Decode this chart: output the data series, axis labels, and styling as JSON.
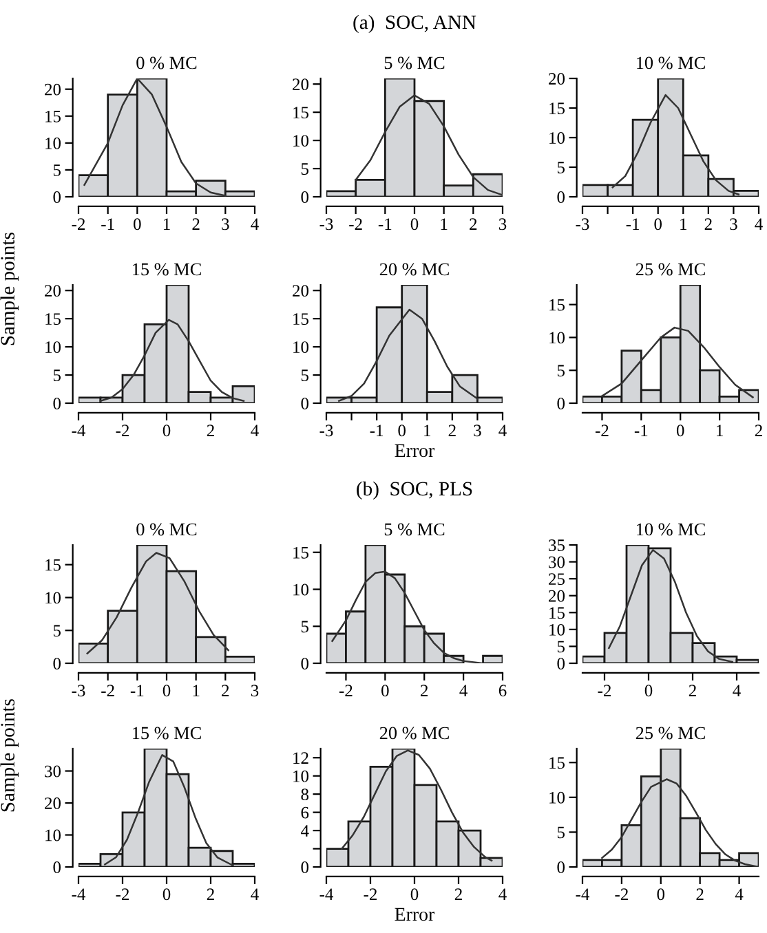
{
  "chart_data": [
    {
      "type": "histogram",
      "title": "0 % MC",
      "ylabel": "Sample points",
      "bins": [
        -2,
        -1,
        0,
        1,
        2,
        3,
        4
      ],
      "xlim": [
        -2,
        4
      ],
      "xticks": [
        -2,
        -1,
        0,
        1,
        2,
        3,
        4
      ],
      "ylim": [
        0,
        22
      ],
      "yticks": [
        0,
        5,
        10,
        15,
        20
      ],
      "series": [
        {
          "type": "histogram",
          "color": "#d4d6d9",
          "values": [
            4,
            19,
            22,
            1,
            3,
            1
          ]
        },
        {
          "type": "line",
          "color": "#333333",
          "x": [
            -1.8,
            -1,
            -0.5,
            0,
            0.5,
            1,
            1.5,
            2,
            2.5,
            3
          ],
          "values": [
            2.2,
            10,
            17,
            22,
            19,
            13,
            6.5,
            2.5,
            0.8,
            0.2
          ]
        }
      ]
    },
    {
      "type": "histogram",
      "title": "5 % MC",
      "annotations": [
        "(a)  SOC, ANN"
      ],
      "bins": [
        -3,
        -2,
        -1,
        0,
        1,
        2,
        3
      ],
      "xlim": [
        -3,
        3
      ],
      "xticks": [
        -3,
        -2,
        -1,
        0,
        1,
        2,
        3
      ],
      "ylim": [
        0,
        21
      ],
      "yticks": [
        0,
        5,
        10,
        15,
        20
      ],
      "series": [
        {
          "type": "histogram",
          "color": "#d4d6d9",
          "values": [
            1,
            3,
            21,
            17,
            2,
            4
          ]
        },
        {
          "type": "line",
          "color": "#333333",
          "x": [
            -2,
            -1.5,
            -1,
            -0.5,
            0,
            0.5,
            1,
            1.5,
            2,
            2.5,
            3
          ],
          "values": [
            3,
            6.5,
            11.5,
            16,
            18,
            16.5,
            12.5,
            7.5,
            3.5,
            1.2,
            0.3
          ]
        }
      ]
    },
    {
      "type": "histogram",
      "title": "10 % MC",
      "bins": [
        -3,
        -2,
        -1,
        0,
        1,
        2,
        3,
        4
      ],
      "xlim": [
        -3,
        4
      ],
      "xticks": [
        -3,
        {
          "value": -2,
          "label": null
        },
        -1,
        0,
        1,
        2,
        3,
        4
      ],
      "ylim": [
        0,
        20
      ],
      "yticks": [
        0,
        5,
        10,
        15,
        20
      ],
      "series": [
        {
          "type": "histogram",
          "color": "#d4d6d9",
          "values": [
            2,
            2,
            13,
            20,
            7,
            3,
            1
          ]
        },
        {
          "type": "line",
          "color": "#333333",
          "x": [
            -1.8,
            -1.3,
            -0.8,
            -0.3,
            0.3,
            0.8,
            1.3,
            1.8,
            2.3,
            2.8,
            3.2
          ],
          "values": [
            1.6,
            3.5,
            7.5,
            12.5,
            17.2,
            15,
            10.5,
            6,
            2.8,
            1,
            0.4
          ]
        }
      ]
    },
    {
      "type": "histogram",
      "title": "15 % MC",
      "bins": [
        -4,
        -3,
        -2,
        -1,
        0,
        1,
        2,
        3,
        4
      ],
      "xlim": [
        -4,
        4
      ],
      "xticks": [
        -4,
        -2,
        0,
        2,
        4
      ],
      "ylim": [
        0,
        21
      ],
      "yticks": [
        0,
        5,
        10,
        15,
        20
      ],
      "series": [
        {
          "type": "histogram",
          "color": "#d4d6d9",
          "values": [
            1,
            1,
            5,
            14,
            21,
            2,
            1,
            3
          ]
        },
        {
          "type": "line",
          "color": "#333333",
          "x": [
            -3,
            -2.5,
            -2,
            -1.5,
            -1,
            -0.5,
            0.1,
            0.5,
            1,
            1.5,
            2,
            2.5,
            3,
            3.5
          ],
          "values": [
            0.4,
            1,
            2.5,
            5,
            8.5,
            12.5,
            14.8,
            14,
            11,
            7.5,
            4,
            2,
            0.9,
            0.4
          ]
        }
      ]
    },
    {
      "type": "histogram",
      "title": "20 % MC",
      "xlabel": "Error",
      "bins": [
        -3,
        -2,
        -1,
        0,
        1,
        2,
        3,
        4
      ],
      "xlim": [
        -3,
        4
      ],
      "xticks": [
        -3,
        {
          "value": -2,
          "label": null
        },
        -1,
        0,
        1,
        2,
        3,
        4
      ],
      "ylim": [
        0,
        21
      ],
      "yticks": [
        0,
        5,
        10,
        15,
        20
      ],
      "series": [
        {
          "type": "histogram",
          "color": "#d4d6d9",
          "values": [
            1,
            1,
            17,
            21,
            2,
            5,
            1
          ]
        },
        {
          "type": "line",
          "color": "#333333",
          "x": [
            -2.5,
            -2,
            -1.5,
            -1,
            -0.5,
            0.3,
            0.8,
            1.3,
            1.8,
            2.3,
            3
          ],
          "values": [
            0.4,
            1.3,
            3.5,
            7.5,
            12,
            16.6,
            15,
            11,
            6.5,
            3,
            0.8
          ]
        }
      ]
    },
    {
      "type": "histogram",
      "title": "25 % MC",
      "bins": [
        -2.5,
        -2,
        -1.5,
        -1,
        -0.5,
        0,
        0.5,
        1,
        1.5,
        2
      ],
      "xlim": [
        -2.5,
        2
      ],
      "xticks": [
        -2,
        -1,
        0,
        1,
        2
      ],
      "ylim": [
        0,
        18
      ],
      "yticks": [
        0,
        5,
        10,
        15
      ],
      "series": [
        {
          "type": "histogram",
          "color": "#d4d6d9",
          "values": [
            1,
            1,
            8,
            2,
            10,
            18,
            5,
            1,
            2
          ]
        },
        {
          "type": "line",
          "color": "#333333",
          "x": [
            -2,
            -1.5,
            -1,
            -0.5,
            -0.15,
            0.2,
            0.6,
            1,
            1.4,
            1.85
          ],
          "values": [
            1.1,
            3,
            6.5,
            10,
            11.5,
            11,
            8.5,
            5.5,
            2.8,
            0.9
          ]
        }
      ]
    },
    {
      "type": "histogram",
      "title": "0 % MC",
      "ylabel": "Sample points",
      "bins": [
        -3,
        -2,
        -1,
        0,
        1,
        2,
        3
      ],
      "xlim": [
        -3,
        3
      ],
      "xticks": [
        -3,
        -2,
        -1,
        0,
        1,
        2,
        3
      ],
      "ylim": [
        0,
        18
      ],
      "yticks": [
        0,
        5,
        10,
        15
      ],
      "series": [
        {
          "type": "histogram",
          "color": "#d4d6d9",
          "values": [
            3,
            8,
            18,
            14,
            4,
            1
          ]
        },
        {
          "type": "line",
          "color": "#333333",
          "x": [
            -2.7,
            -2.2,
            -1.7,
            -1.2,
            -0.7,
            -0.35,
            0.1,
            0.6,
            1.1,
            1.6,
            2.1
          ],
          "values": [
            1.5,
            3.5,
            7,
            11.5,
            15.5,
            16.8,
            16,
            12.5,
            8,
            4.3,
            2
          ]
        }
      ]
    },
    {
      "type": "histogram",
      "title": "5 % MC",
      "annotations": [
        "(b)  SOC, PLS"
      ],
      "bins": [
        -3,
        -2,
        -1,
        0,
        1,
        2,
        3,
        4,
        5,
        6
      ],
      "xlim": [
        -3,
        6
      ],
      "xticks": [
        -2,
        0,
        2,
        4,
        6
      ],
      "ylim": [
        0,
        16
      ],
      "yticks": [
        0,
        5,
        10,
        15
      ],
      "series": [
        {
          "type": "histogram",
          "color": "#d4d6d9",
          "values": [
            4,
            7,
            16,
            12,
            5,
            4,
            1,
            0,
            1
          ]
        },
        {
          "type": "line",
          "color": "#333333",
          "x": [
            -2.7,
            -2,
            -1.5,
            -1,
            -0.5,
            0,
            0.5,
            1,
            1.5,
            2,
            2.5,
            3,
            3.5,
            4,
            5
          ],
          "values": [
            3,
            5.8,
            8.5,
            11,
            12.2,
            12.4,
            11.5,
            9.5,
            7,
            4.5,
            2.7,
            1.4,
            0.7,
            0.3,
            0
          ]
        }
      ]
    },
    {
      "type": "histogram",
      "title": "10 % MC",
      "bins": [
        -3,
        -2,
        -1,
        0,
        1,
        2,
        3,
        4,
        5
      ],
      "xlim": [
        -3,
        5
      ],
      "xticks": [
        -2,
        0,
        2,
        4
      ],
      "ylim": [
        0,
        35
      ],
      "yticks": [
        0,
        5,
        10,
        15,
        20,
        25,
        30,
        35
      ],
      "series": [
        {
          "type": "histogram",
          "color": "#d4d6d9",
          "values": [
            2,
            9,
            35,
            34,
            9,
            6,
            2,
            1
          ]
        },
        {
          "type": "line",
          "color": "#333333",
          "x": [
            -1.8,
            -1.3,
            -0.8,
            -0.3,
            0.2,
            0.7,
            1.2,
            1.7,
            2.2,
            2.7,
            3.2,
            3.8
          ],
          "values": [
            4.5,
            11,
            20,
            29,
            33.5,
            31,
            24,
            15,
            8,
            3.5,
            1.3,
            0.4
          ]
        }
      ]
    },
    {
      "type": "histogram",
      "title": "15 % MC",
      "bins": [
        -4,
        -3,
        -2,
        -1,
        0,
        1,
        2,
        3,
        4
      ],
      "xlim": [
        -4,
        4
      ],
      "xticks": [
        -4,
        -2,
        0,
        2,
        4
      ],
      "ylim": [
        0,
        37
      ],
      "yticks": [
        0,
        10,
        20,
        30
      ],
      "series": [
        {
          "type": "histogram",
          "color": "#d4d6d9",
          "values": [
            1,
            4,
            17,
            37,
            29,
            6,
            5,
            1
          ]
        },
        {
          "type": "line",
          "color": "#333333",
          "x": [
            -2.8,
            -2.3,
            -1.8,
            -1.3,
            -0.8,
            -0.2,
            0.3,
            0.8,
            1.3,
            1.8,
            2.3,
            3
          ],
          "values": [
            0.8,
            3,
            8.5,
            17,
            26.5,
            35,
            33,
            25,
            15.5,
            7.5,
            3,
            0.5
          ]
        }
      ]
    },
    {
      "type": "histogram",
      "title": "20 % MC",
      "xlabel": "Error",
      "bins": [
        -4,
        -3,
        -2,
        -1,
        0,
        1,
        2,
        3,
        4
      ],
      "xlim": [
        -4,
        4
      ],
      "xticks": [
        -4,
        -2,
        0,
        2,
        4
      ],
      "ylim": [
        0,
        13
      ],
      "yticks": [
        0,
        {
          "value": 2,
          "label": null
        },
        4,
        6,
        8,
        10,
        12
      ],
      "series": [
        {
          "type": "histogram",
          "color": "#d4d6d9",
          "values": [
            2,
            5,
            11,
            13,
            9,
            5,
            4,
            1
          ]
        },
        {
          "type": "line",
          "color": "#333333",
          "x": [
            -3.3,
            -2.8,
            -2.3,
            -1.8,
            -1.3,
            -0.8,
            -0.3,
            0.2,
            0.7,
            1.2,
            1.7,
            2.2,
            2.7,
            3.2,
            3.5
          ],
          "values": [
            2,
            3.5,
            5.5,
            8,
            10.5,
            12.2,
            12.8,
            12.3,
            10.8,
            8.5,
            6,
            3.8,
            2.2,
            1.1,
            0.7
          ]
        }
      ]
    },
    {
      "type": "histogram",
      "title": "25 % MC",
      "bins": [
        -4,
        -3,
        -2,
        -1,
        0,
        1,
        2,
        3,
        4,
        5
      ],
      "xlim": [
        -4,
        5
      ],
      "xticks": [
        -4,
        -2,
        0,
        2,
        4
      ],
      "ylim": [
        0,
        17
      ],
      "yticks": [
        0,
        5,
        10,
        15
      ],
      "series": [
        {
          "type": "histogram",
          "color": "#d4d6d9",
          "values": [
            1,
            1,
            6,
            13,
            17,
            7,
            2,
            1,
            2
          ]
        },
        {
          "type": "line",
          "color": "#333333",
          "x": [
            -3,
            -2.5,
            -2,
            -1.5,
            -1,
            -0.5,
            0.3,
            0.8,
            1.3,
            1.8,
            2.3,
            2.8,
            3.3,
            3.8,
            4.3,
            5
          ],
          "values": [
            1.3,
            2.5,
            4.3,
            6.8,
            9.3,
            11.5,
            12.6,
            12,
            10.2,
            7.8,
            5.3,
            3.3,
            1.8,
            0.9,
            0.4,
            0
          ]
        }
      ]
    }
  ]
}
